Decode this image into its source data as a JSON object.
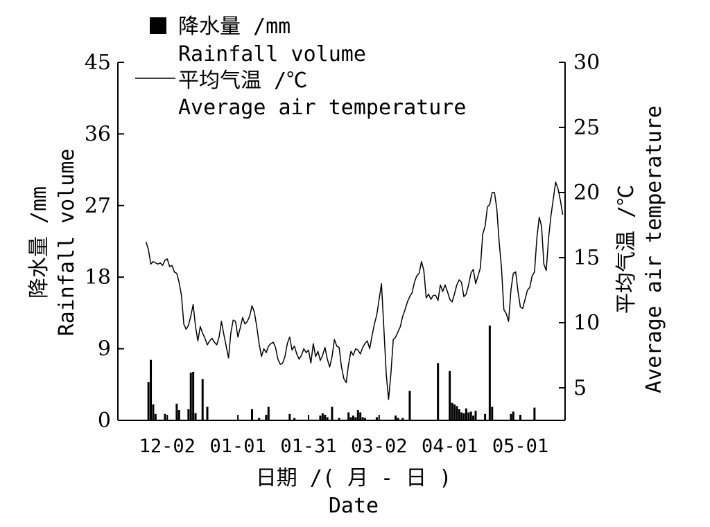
{
  "chart_data": {
    "type": "bar+line",
    "legend": {
      "placement": "top-left",
      "items": [
        {
          "marker": "filled-square",
          "line1": "降水量 /mm",
          "line2": "Rainfall volume"
        },
        {
          "marker": "line",
          "line1": "平均气温 /℃",
          "line2": "Average air temperature"
        }
      ]
    },
    "x_axis": {
      "title_cn": "日期 /( 月 - 日 )",
      "title_en": "Date",
      "tick_labels": [
        "12-02",
        "01-01",
        "01-31",
        "03-02",
        "04-01",
        "05-01"
      ],
      "tick_days": [
        21,
        51,
        81,
        111,
        141,
        171
      ],
      "range_days": [
        0,
        190
      ],
      "date_labels_format": "MM-DD"
    },
    "y_left": {
      "title_cn": "降水量 /mm",
      "title_en": "Rainfall volume",
      "range": [
        0,
        45
      ],
      "ticks": [
        0,
        9,
        18,
        27,
        36,
        45
      ],
      "tick_labels": [
        "0",
        "9",
        "18",
        "27",
        "36",
        "45"
      ]
    },
    "y_right": {
      "title_cn": "平均气温 /℃",
      "title_en": "Average air temperature",
      "range": [
        2.5,
        30
      ],
      "ticks": [
        5,
        10,
        15,
        20,
        25,
        30
      ],
      "tick_labels": [
        "5",
        "10",
        "15",
        "20",
        "25",
        "30"
      ]
    },
    "series": [
      {
        "name": "降水量 Rainfall volume",
        "kind": "bar",
        "color": "#000000",
        "points": [
          [
            13,
            4.8
          ],
          [
            14,
            7.6
          ],
          [
            15,
            2.0
          ],
          [
            16,
            0.8
          ],
          [
            20,
            0.8
          ],
          [
            25,
            2.1
          ],
          [
            26,
            1.3
          ],
          [
            30,
            1.4
          ],
          [
            31,
            6.0
          ],
          [
            32,
            6.1
          ],
          [
            33,
            0.9
          ],
          [
            36,
            5.2
          ],
          [
            38,
            1.7
          ],
          [
            57,
            1.4
          ],
          [
            60,
            0.3
          ],
          [
            63,
            0.7
          ],
          [
            64,
            1.7
          ],
          [
            73,
            0.8
          ],
          [
            75,
            0.3
          ],
          [
            86,
            0.6
          ],
          [
            87,
            0.9
          ],
          [
            88,
            0.7
          ],
          [
            89,
            0.4
          ],
          [
            91,
            1.7
          ],
          [
            94,
            0.3
          ],
          [
            98,
            1.0
          ],
          [
            99,
            0.4
          ],
          [
            100,
            0.6
          ],
          [
            101,
            0.4
          ],
          [
            102,
            1.3
          ],
          [
            103,
            1.0
          ],
          [
            104,
            0.4
          ],
          [
            105,
            0.3
          ],
          [
            110,
            0.4
          ],
          [
            118,
            0.6
          ],
          [
            119,
            0.3
          ],
          [
            121,
            0.3
          ],
          [
            124,
            3.7
          ],
          [
            136,
            7.2
          ],
          [
            141,
            6.2
          ],
          [
            142,
            2.2
          ],
          [
            143,
            2.0
          ],
          [
            144,
            1.8
          ],
          [
            145,
            1.4
          ],
          [
            146,
            1.0
          ],
          [
            147,
            0.9
          ],
          [
            148,
            1.5
          ],
          [
            149,
            1.0
          ],
          [
            150,
            1.1
          ],
          [
            151,
            0.6
          ],
          [
            152,
            1.2
          ],
          [
            156,
            0.8
          ],
          [
            158,
            11.9
          ],
          [
            159,
            1.7
          ],
          [
            167,
            0.8
          ],
          [
            168,
            1.1
          ],
          [
            171,
            0.7
          ],
          [
            177,
            1.6
          ]
        ]
      },
      {
        "name": "平均气温 Average air temperature",
        "kind": "line",
        "color": "#000000",
        "points": [
          [
            12,
            16.2
          ],
          [
            13,
            15.6
          ],
          [
            14,
            14.5
          ],
          [
            15,
            14.7
          ],
          [
            16,
            14.6
          ],
          [
            17,
            14.5
          ],
          [
            18,
            14.6
          ],
          [
            19,
            14.4
          ],
          [
            20,
            14.8
          ],
          [
            21,
            14.9
          ],
          [
            22,
            14.3
          ],
          [
            23,
            14.4
          ],
          [
            24,
            13.9
          ],
          [
            25,
            13.8
          ],
          [
            26,
            13.1
          ],
          [
            27,
            12.1
          ],
          [
            28,
            9.9
          ],
          [
            29,
            9.5
          ],
          [
            30,
            9.8
          ],
          [
            31,
            10.5
          ],
          [
            32,
            11.4
          ],
          [
            33,
            9.7
          ],
          [
            34,
            8.6
          ],
          [
            35,
            9.7
          ],
          [
            36,
            9.2
          ],
          [
            37,
            8.8
          ],
          [
            38,
            8.3
          ],
          [
            39,
            8.6
          ],
          [
            40,
            8.8
          ],
          [
            41,
            8.5
          ],
          [
            42,
            8.3
          ],
          [
            43,
            8.9
          ],
          [
            44,
            10.1
          ],
          [
            45,
            9.1
          ],
          [
            46,
            8.2
          ],
          [
            47,
            7.3
          ],
          [
            48,
            9.2
          ],
          [
            49,
            10.2
          ],
          [
            50,
            10.1
          ],
          [
            51,
            8.9
          ],
          [
            52,
            9.6
          ],
          [
            53,
            10.4
          ],
          [
            54,
            9.9
          ],
          [
            55,
            10.1
          ],
          [
            56,
            10.5
          ],
          [
            57,
            11.3
          ],
          [
            58,
            10.8
          ],
          [
            59,
            9.7
          ],
          [
            60,
            8.4
          ],
          [
            61,
            7.4
          ],
          [
            62,
            8.0
          ],
          [
            63,
            7.7
          ],
          [
            64,
            8.2
          ],
          [
            65,
            8.4
          ],
          [
            66,
            8.5
          ],
          [
            67,
            8.1
          ],
          [
            68,
            7.2
          ],
          [
            69,
            6.8
          ],
          [
            70,
            6.9
          ],
          [
            71,
            7.4
          ],
          [
            72,
            8.4
          ],
          [
            73,
            8.9
          ],
          [
            74,
            7.9
          ],
          [
            75,
            8.2
          ],
          [
            76,
            7.6
          ],
          [
            77,
            7.2
          ],
          [
            78,
            7.5
          ],
          [
            79,
            8.0
          ],
          [
            80,
            7.7
          ],
          [
            81,
            7.9
          ],
          [
            82,
            6.9
          ],
          [
            83,
            8.4
          ],
          [
            84,
            7.4
          ],
          [
            85,
            7.8
          ],
          [
            86,
            7.1
          ],
          [
            87,
            7.5
          ],
          [
            88,
            8.1
          ],
          [
            89,
            7.2
          ],
          [
            90,
            6.6
          ],
          [
            91,
            7.4
          ],
          [
            92,
            8.7
          ],
          [
            93,
            8.2
          ],
          [
            94,
            8.1
          ],
          [
            95,
            6.6
          ],
          [
            96,
            5.7
          ],
          [
            97,
            5.4
          ],
          [
            98,
            6.8
          ],
          [
            99,
            7.8
          ],
          [
            100,
            7.5
          ],
          [
            101,
            8.0
          ],
          [
            102,
            7.9
          ],
          [
            103,
            7.6
          ],
          [
            104,
            8.1
          ],
          [
            105,
            8.4
          ],
          [
            106,
            8.6
          ],
          [
            107,
            8.0
          ],
          [
            108,
            9.0
          ],
          [
            109,
            9.9
          ],
          [
            110,
            10.6
          ],
          [
            111,
            11.8
          ],
          [
            112,
            13.0
          ],
          [
            113,
            9.6
          ],
          [
            114,
            6.1
          ],
          [
            115,
            4.1
          ],
          [
            116,
            6.1
          ],
          [
            117,
            8.7
          ],
          [
            118,
            8.9
          ],
          [
            119,
            9.3
          ],
          [
            120,
            9.7
          ],
          [
            121,
            10.5
          ],
          [
            122,
            11.0
          ],
          [
            123,
            11.6
          ],
          [
            124,
            12.0
          ],
          [
            125,
            12.3
          ],
          [
            126,
            13.1
          ],
          [
            127,
            13.6
          ],
          [
            128,
            13.8
          ],
          [
            129,
            14.7
          ],
          [
            130,
            14.0
          ],
          [
            131,
            11.9
          ],
          [
            132,
            12.2
          ],
          [
            133,
            11.8
          ],
          [
            134,
            12.1
          ],
          [
            135,
            12.1
          ],
          [
            136,
            11.7
          ],
          [
            137,
            12.9
          ],
          [
            138,
            12.4
          ],
          [
            139,
            12.9
          ],
          [
            140,
            12.4
          ],
          [
            141,
            11.8
          ],
          [
            142,
            11.6
          ],
          [
            143,
            12.2
          ],
          [
            144,
            12.9
          ],
          [
            145,
            13.3
          ],
          [
            146,
            13.1
          ],
          [
            147,
            12.0
          ],
          [
            148,
            12.2
          ],
          [
            149,
            12.9
          ],
          [
            150,
            13.8
          ],
          [
            151,
            14.1
          ],
          [
            152,
            13.0
          ],
          [
            153,
            13.6
          ],
          [
            154,
            14.2
          ],
          [
            155,
            16.8
          ],
          [
            156,
            17.4
          ],
          [
            157,
            18.9
          ],
          [
            158,
            19.1
          ],
          [
            159,
            20.0
          ],
          [
            160,
            20.0
          ],
          [
            161,
            18.7
          ],
          [
            162,
            16.2
          ],
          [
            163,
            14.2
          ],
          [
            164,
            11.0
          ],
          [
            165,
            10.7
          ],
          [
            166,
            10.1
          ],
          [
            167,
            12.5
          ],
          [
            168,
            13.8
          ],
          [
            169,
            13.9
          ],
          [
            170,
            12.4
          ],
          [
            171,
            11.2
          ],
          [
            172,
            11.1
          ],
          [
            173,
            11.8
          ],
          [
            174,
            12.5
          ],
          [
            175,
            12.7
          ],
          [
            176,
            13.6
          ],
          [
            177,
            13.9
          ],
          [
            178,
            16.5
          ],
          [
            179,
            18.1
          ],
          [
            180,
            17.4
          ],
          [
            181,
            14.5
          ],
          [
            182,
            14.0
          ],
          [
            183,
            16.5
          ],
          [
            184,
            18.2
          ],
          [
            185,
            19.5
          ],
          [
            186,
            20.8
          ],
          [
            187,
            20.3
          ],
          [
            188,
            19.4
          ],
          [
            189,
            18.3
          ]
        ]
      }
    ]
  }
}
